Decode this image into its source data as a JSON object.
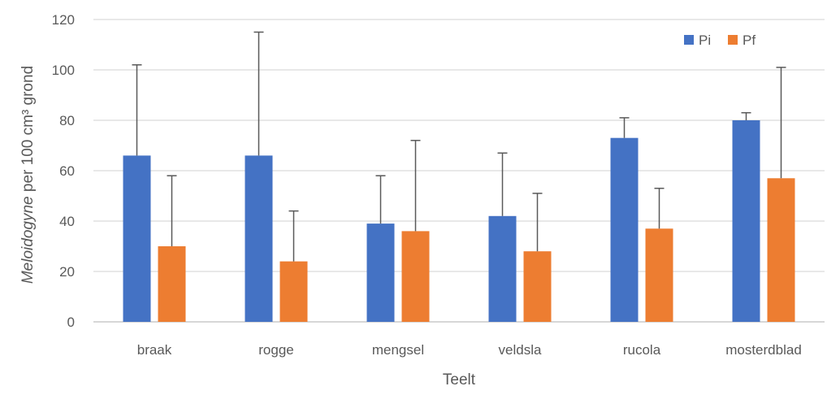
{
  "chart_data": {
    "type": "bar",
    "categories": [
      "braak",
      "rogge",
      "mengsel",
      "veldsla",
      "rucola",
      "mosterdblad"
    ],
    "series": [
      {
        "name": "Pi",
        "color": "#4472C4",
        "values": [
          66,
          66,
          39,
          42,
          73,
          80
        ],
        "error_upper": [
          36,
          49,
          19,
          25,
          8,
          3
        ]
      },
      {
        "name": "Pf",
        "color": "#ED7D31",
        "values": [
          30,
          24,
          36,
          28,
          37,
          57
        ],
        "error_upper": [
          28,
          20,
          36,
          23,
          16,
          44
        ]
      }
    ],
    "xlabel": "Teelt",
    "ylabel_italic": "Meloidogyne",
    "ylabel_rest": " per 100 cm³ grond",
    "ylim": [
      0,
      120
    ],
    "yticks": [
      0,
      20,
      40,
      60,
      80,
      100,
      120
    ],
    "grid": true,
    "legend_position": "top-right",
    "error_bar_color": "#595959",
    "grid_color": "#D9D9D9"
  }
}
